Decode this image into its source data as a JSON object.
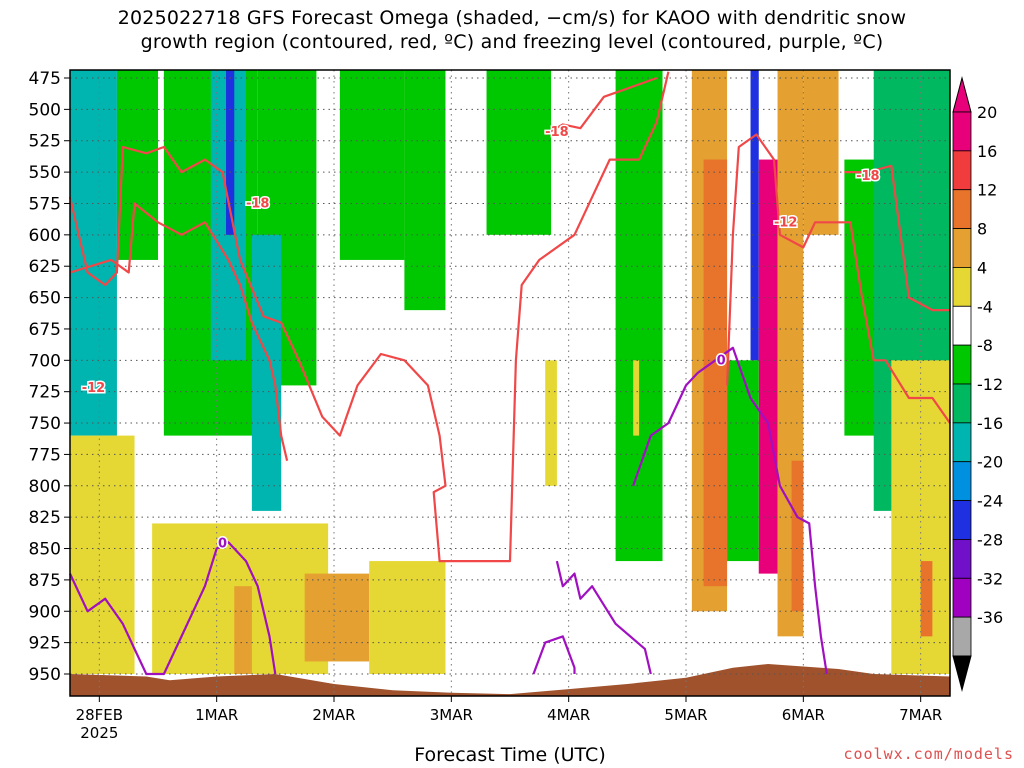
{
  "chart_data": {
    "type": "heatmap",
    "title_line1": "2025022718 GFS Forecast Omega (shaded, −cm/s) for KAOO with dendritic snow",
    "title_line2": "growth region (contoured, red, ºC) and freezing level (contoured, purple, ºC)",
    "xlabel": "Forecast Time (UTC)",
    "y_axis": {
      "levels": [
        475,
        500,
        525,
        550,
        575,
        600,
        625,
        650,
        675,
        700,
        725,
        750,
        775,
        800,
        825,
        850,
        875,
        900,
        925,
        950
      ],
      "min": 475,
      "max": 950,
      "inverted": true
    },
    "x_axis": {
      "ticks": [
        {
          "label": "28FEB",
          "sublabel": "2025",
          "t": 0
        },
        {
          "label": "1MAR",
          "t": 1
        },
        {
          "label": "2MAR",
          "t": 2
        },
        {
          "label": "3MAR",
          "t": 3
        },
        {
          "label": "4MAR",
          "t": 4
        },
        {
          "label": "5MAR",
          "t": 5
        },
        {
          "label": "6MAR",
          "t": 6
        },
        {
          "label": "7MAR",
          "t": 7
        }
      ],
      "min": -0.25,
      "max": 7.25
    },
    "colorbar": {
      "labels": [
        20,
        16,
        12,
        8,
        4,
        -4,
        -8,
        -12,
        -16,
        -20,
        -24,
        -28,
        -32,
        -36
      ],
      "colors": [
        "#e8007a",
        "#f03c3c",
        "#e8742c",
        "#e4a030",
        "#e6d834",
        "#ffffff",
        "#00c800",
        "#00b860",
        "#00b4b0",
        "#0090e0",
        "#1e30e0",
        "#7010c8",
        "#a000c0",
        "#a8a8a8"
      ]
    },
    "shading": [
      {
        "t0": -0.25,
        "t1": 0.15,
        "p0": 475,
        "p1": 760,
        "color": "#00b4b0"
      },
      {
        "t0": 0.15,
        "t1": 0.5,
        "p0": 475,
        "p1": 620,
        "color": "#00c800"
      },
      {
        "t0": 0.55,
        "t1": 1.35,
        "p0": 475,
        "p1": 760,
        "color": "#00c800"
      },
      {
        "t0": 0.95,
        "t1": 1.25,
        "p0": 475,
        "p1": 700,
        "color": "#00b4b0"
      },
      {
        "t0": 1.08,
        "t1": 1.15,
        "p0": 475,
        "p1": 600,
        "color": "#1e30e0"
      },
      {
        "t0": 1.35,
        "t1": 1.85,
        "p0": 475,
        "p1": 720,
        "color": "#00c800"
      },
      {
        "t0": 1.3,
        "t1": 1.55,
        "p0": 600,
        "p1": 820,
        "color": "#00b4b0"
      },
      {
        "t0": 2.05,
        "t1": 2.6,
        "p0": 475,
        "p1": 620,
        "color": "#00c800"
      },
      {
        "t0": 2.6,
        "t1": 2.95,
        "p0": 475,
        "p1": 660,
        "color": "#00c800"
      },
      {
        "t0": 3.3,
        "t1": 3.85,
        "p0": 475,
        "p1": 600,
        "color": "#00c800"
      },
      {
        "t0": 4.4,
        "t1": 4.8,
        "p0": 475,
        "p1": 860,
        "color": "#00c800"
      },
      {
        "t0": 5.05,
        "t1": 5.35,
        "p0": 475,
        "p1": 900,
        "color": "#e4a030"
      },
      {
        "t0": 5.15,
        "t1": 5.35,
        "p0": 540,
        "p1": 880,
        "color": "#e8742c"
      },
      {
        "t0": 5.55,
        "t1": 5.62,
        "p0": 475,
        "p1": 700,
        "color": "#1e30e0"
      },
      {
        "t0": 5.62,
        "t1": 5.78,
        "p0": 540,
        "p1": 870,
        "color": "#e8007a"
      },
      {
        "t0": 5.35,
        "t1": 5.62,
        "p0": 700,
        "p1": 860,
        "color": "#00c800"
      },
      {
        "t0": 5.78,
        "t1": 6.0,
        "p0": 475,
        "p1": 920,
        "color": "#e4a030"
      },
      {
        "t0": 5.9,
        "t1": 6.0,
        "p0": 780,
        "p1": 900,
        "color": "#e8742c"
      },
      {
        "t0": 6.0,
        "t1": 6.3,
        "p0": 475,
        "p1": 600,
        "color": "#e4a030"
      },
      {
        "t0": 6.35,
        "t1": 6.75,
        "p0": 540,
        "p1": 760,
        "color": "#00c800"
      },
      {
        "t0": 6.6,
        "t1": 7.25,
        "p0": 475,
        "p1": 820,
        "color": "#00b860"
      },
      {
        "t0": 6.75,
        "t1": 7.25,
        "p0": 700,
        "p1": 950,
        "color": "#e6d834"
      },
      {
        "t0": 7.0,
        "t1": 7.1,
        "p0": 860,
        "p1": 920,
        "color": "#e8742c"
      },
      {
        "t0": -0.25,
        "t1": 0.3,
        "p0": 760,
        "p1": 950,
        "color": "#e6d834"
      },
      {
        "t0": 0.45,
        "t1": 1.95,
        "p0": 830,
        "p1": 950,
        "color": "#e6d834"
      },
      {
        "t0": 1.15,
        "t1": 1.3,
        "p0": 880,
        "p1": 950,
        "color": "#e4a030"
      },
      {
        "t0": 1.75,
        "t1": 2.3,
        "p0": 870,
        "p1": 940,
        "color": "#e4a030"
      },
      {
        "t0": 2.3,
        "t1": 2.95,
        "p0": 860,
        "p1": 950,
        "color": "#e6d834"
      },
      {
        "t0": 3.8,
        "t1": 3.9,
        "p0": 700,
        "p1": 800,
        "color": "#e6d834"
      },
      {
        "t0": 4.55,
        "t1": 4.6,
        "p0": 700,
        "p1": 760,
        "color": "#e6d834"
      }
    ],
    "terrain_color": "#a0522d",
    "dgz_contours": [
      {
        "label": "-12",
        "label_t": -0.05,
        "label_p": 722,
        "points": [
          [
            -0.25,
            570
          ],
          [
            -0.1,
            630
          ],
          [
            0.05,
            640
          ],
          [
            0.15,
            630
          ],
          [
            0.2,
            530
          ],
          [
            0.4,
            535
          ],
          [
            0.55,
            530
          ],
          [
            0.7,
            550
          ],
          [
            0.9,
            540
          ],
          [
            1.05,
            550
          ],
          [
            1.2,
            620
          ],
          [
            1.4,
            665
          ],
          [
            1.55,
            670
          ],
          [
            1.7,
            700
          ],
          [
            1.9,
            745
          ],
          [
            2.05,
            760
          ],
          [
            2.2,
            720
          ],
          [
            2.4,
            695
          ],
          [
            2.6,
            700
          ],
          [
            2.8,
            720
          ],
          [
            2.9,
            760
          ],
          [
            2.95,
            800
          ],
          [
            2.85,
            805
          ],
          [
            2.9,
            860
          ],
          [
            3.2,
            860
          ],
          [
            3.5,
            860
          ],
          [
            3.55,
            700
          ],
          [
            3.6,
            640
          ],
          [
            3.75,
            620
          ],
          [
            4.05,
            600
          ],
          [
            4.2,
            570
          ],
          [
            4.35,
            540
          ],
          [
            4.6,
            540
          ],
          [
            4.75,
            510
          ],
          [
            4.85,
            470
          ]
        ]
      },
      {
        "label": "-12",
        "label_t": 5.85,
        "label_p": 590,
        "points": [
          [
            5.35,
            720
          ],
          [
            5.4,
            600
          ],
          [
            5.45,
            530
          ],
          [
            5.6,
            520
          ],
          [
            5.75,
            540
          ],
          [
            5.8,
            600
          ],
          [
            6.0,
            610
          ],
          [
            6.1,
            590
          ],
          [
            6.4,
            590
          ],
          [
            6.5,
            650
          ],
          [
            6.6,
            700
          ],
          [
            6.7,
            700
          ],
          [
            6.9,
            730
          ],
          [
            7.1,
            730
          ],
          [
            7.25,
            750
          ]
        ]
      },
      {
        "label": "-18",
        "label_t": 1.35,
        "label_p": 575,
        "points": [
          [
            -0.25,
            630
          ],
          [
            0.1,
            620
          ],
          [
            0.25,
            630
          ],
          [
            0.3,
            575
          ],
          [
            0.5,
            590
          ],
          [
            0.7,
            600
          ],
          [
            0.9,
            590
          ],
          [
            1.1,
            620
          ],
          [
            1.2,
            640
          ],
          [
            1.3,
            670
          ],
          [
            1.45,
            700
          ],
          [
            1.5,
            720
          ],
          [
            1.55,
            760
          ],
          [
            1.6,
            780
          ]
        ]
      },
      {
        "label": "-18",
        "label_t": 3.9,
        "label_p": 518,
        "points": [
          [
            3.8,
            520
          ],
          [
            3.95,
            512
          ],
          [
            4.1,
            515
          ],
          [
            4.3,
            490
          ],
          [
            4.6,
            480
          ],
          [
            4.75,
            475
          ]
        ]
      },
      {
        "label": "-18",
        "label_t": 6.55,
        "label_p": 553,
        "points": [
          [
            6.35,
            550
          ],
          [
            6.55,
            550
          ],
          [
            6.75,
            545
          ],
          [
            6.9,
            650
          ],
          [
            7.1,
            660
          ],
          [
            7.25,
            660
          ]
        ]
      }
    ],
    "freezing_contours": [
      {
        "label": "0",
        "label_t": 1.05,
        "label_p": 846,
        "points": [
          [
            -0.25,
            870
          ],
          [
            -0.1,
            900
          ],
          [
            0.05,
            890
          ],
          [
            0.2,
            910
          ],
          [
            0.3,
            930
          ],
          [
            0.4,
            950
          ],
          [
            0.55,
            950
          ],
          [
            0.7,
            920
          ],
          [
            0.8,
            900
          ],
          [
            0.9,
            880
          ],
          [
            1.0,
            850
          ],
          [
            1.1,
            845
          ],
          [
            1.25,
            860
          ],
          [
            1.35,
            880
          ],
          [
            1.45,
            920
          ],
          [
            1.5,
            950
          ]
        ]
      },
      {
        "label": "",
        "label_t": 0,
        "label_p": 0,
        "points": [
          [
            3.7,
            950
          ],
          [
            3.8,
            925
          ],
          [
            3.95,
            920
          ],
          [
            4.05,
            945
          ],
          [
            4.05,
            950
          ]
        ]
      },
      {
        "label": "",
        "label_t": 0,
        "label_p": 0,
        "points": [
          [
            3.9,
            860
          ],
          [
            3.95,
            880
          ],
          [
            4.05,
            870
          ],
          [
            4.1,
            890
          ],
          [
            4.2,
            880
          ],
          [
            4.4,
            910
          ],
          [
            4.65,
            930
          ],
          [
            4.7,
            950
          ]
        ]
      },
      {
        "label": "0",
        "label_t": 5.3,
        "label_p": 700,
        "points": [
          [
            4.55,
            800
          ],
          [
            4.7,
            760
          ],
          [
            4.85,
            750
          ],
          [
            4.9,
            740
          ],
          [
            5.0,
            720
          ],
          [
            5.1,
            710
          ],
          [
            5.25,
            700
          ],
          [
            5.4,
            690
          ],
          [
            5.55,
            730
          ],
          [
            5.7,
            750
          ],
          [
            5.8,
            800
          ],
          [
            5.95,
            825
          ],
          [
            6.05,
            830
          ],
          [
            6.1,
            880
          ],
          [
            6.15,
            920
          ],
          [
            6.2,
            950
          ]
        ]
      }
    ]
  }
}
